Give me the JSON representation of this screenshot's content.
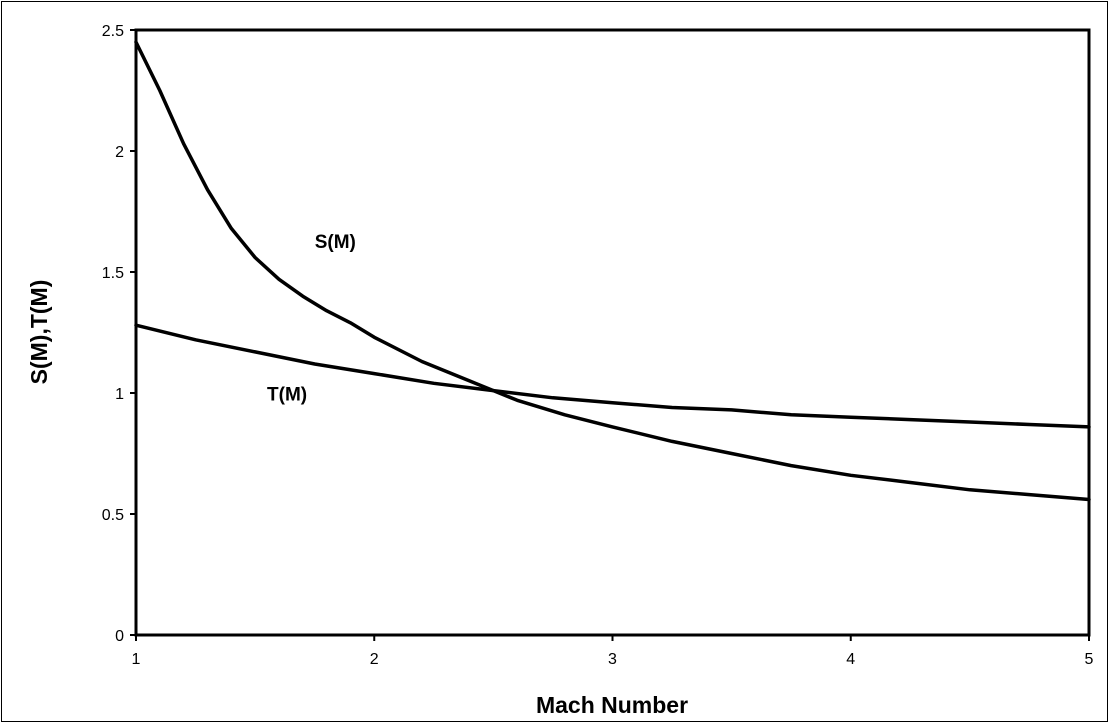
{
  "chart_data": {
    "type": "line",
    "title": "",
    "xlabel": "Mach Number",
    "ylabel": "S(M),T(M)",
    "xlim": [
      1,
      5
    ],
    "ylim": [
      0,
      2.5
    ],
    "x_ticks": [
      1,
      2,
      3,
      4,
      5
    ],
    "y_ticks": [
      0,
      0.5,
      1,
      1.5,
      2,
      2.5
    ],
    "grid": false,
    "legend": "none",
    "series": [
      {
        "name": "S(M)",
        "x": [
          1.0,
          1.1,
          1.2,
          1.3,
          1.4,
          1.5,
          1.6,
          1.7,
          1.8,
          1.9,
          2.0,
          2.2,
          2.4,
          2.5,
          2.6,
          2.8,
          3.0,
          3.25,
          3.5,
          3.75,
          4.0,
          4.25,
          4.5,
          4.75,
          5.0
        ],
        "y": [
          2.45,
          2.25,
          2.03,
          1.84,
          1.68,
          1.56,
          1.47,
          1.4,
          1.34,
          1.29,
          1.23,
          1.13,
          1.05,
          1.01,
          0.97,
          0.91,
          0.86,
          0.8,
          0.75,
          0.7,
          0.66,
          0.63,
          0.6,
          0.58,
          0.56
        ]
      },
      {
        "name": "T(M)",
        "x": [
          1.0,
          1.25,
          1.5,
          1.75,
          2.0,
          2.25,
          2.5,
          2.75,
          3.0,
          3.25,
          3.5,
          3.75,
          4.0,
          4.25,
          4.5,
          4.75,
          5.0
        ],
        "y": [
          1.28,
          1.22,
          1.17,
          1.12,
          1.08,
          1.04,
          1.01,
          0.98,
          0.96,
          0.94,
          0.93,
          0.91,
          0.9,
          0.89,
          0.88,
          0.87,
          0.86
        ]
      }
    ],
    "annotations": [
      {
        "text": "S(M)",
        "x": 1.75,
        "y": 1.6
      },
      {
        "text": "T(M)",
        "x": 1.55,
        "y": 0.97
      }
    ]
  }
}
